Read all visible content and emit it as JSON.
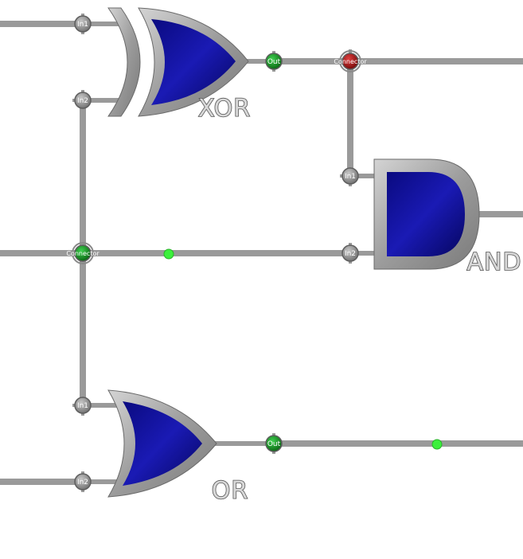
{
  "gates": {
    "xor": {
      "label": "XOR",
      "in1": "In1",
      "in2": "In2",
      "out": "Out"
    },
    "and": {
      "label": "AND",
      "in1": "In1",
      "in2": "In2"
    },
    "or": {
      "label": "OR",
      "in1": "In1",
      "in2": "In2",
      "out": "Out"
    }
  },
  "connectors": {
    "top": {
      "label": "Connector",
      "state": "red"
    },
    "middle": {
      "label": "Connector",
      "state": "green"
    }
  },
  "signals": [
    {
      "wire": "connector-middle-to-and-in2",
      "value": "high"
    },
    {
      "wire": "or-out-line",
      "value": "high"
    }
  ],
  "colors": {
    "gate_fill": "#10109a",
    "wire": "#9a9a9a",
    "signal_on": "#3cf03c",
    "pin_on": "#0b8f1c",
    "pin_off": "#b01010"
  }
}
